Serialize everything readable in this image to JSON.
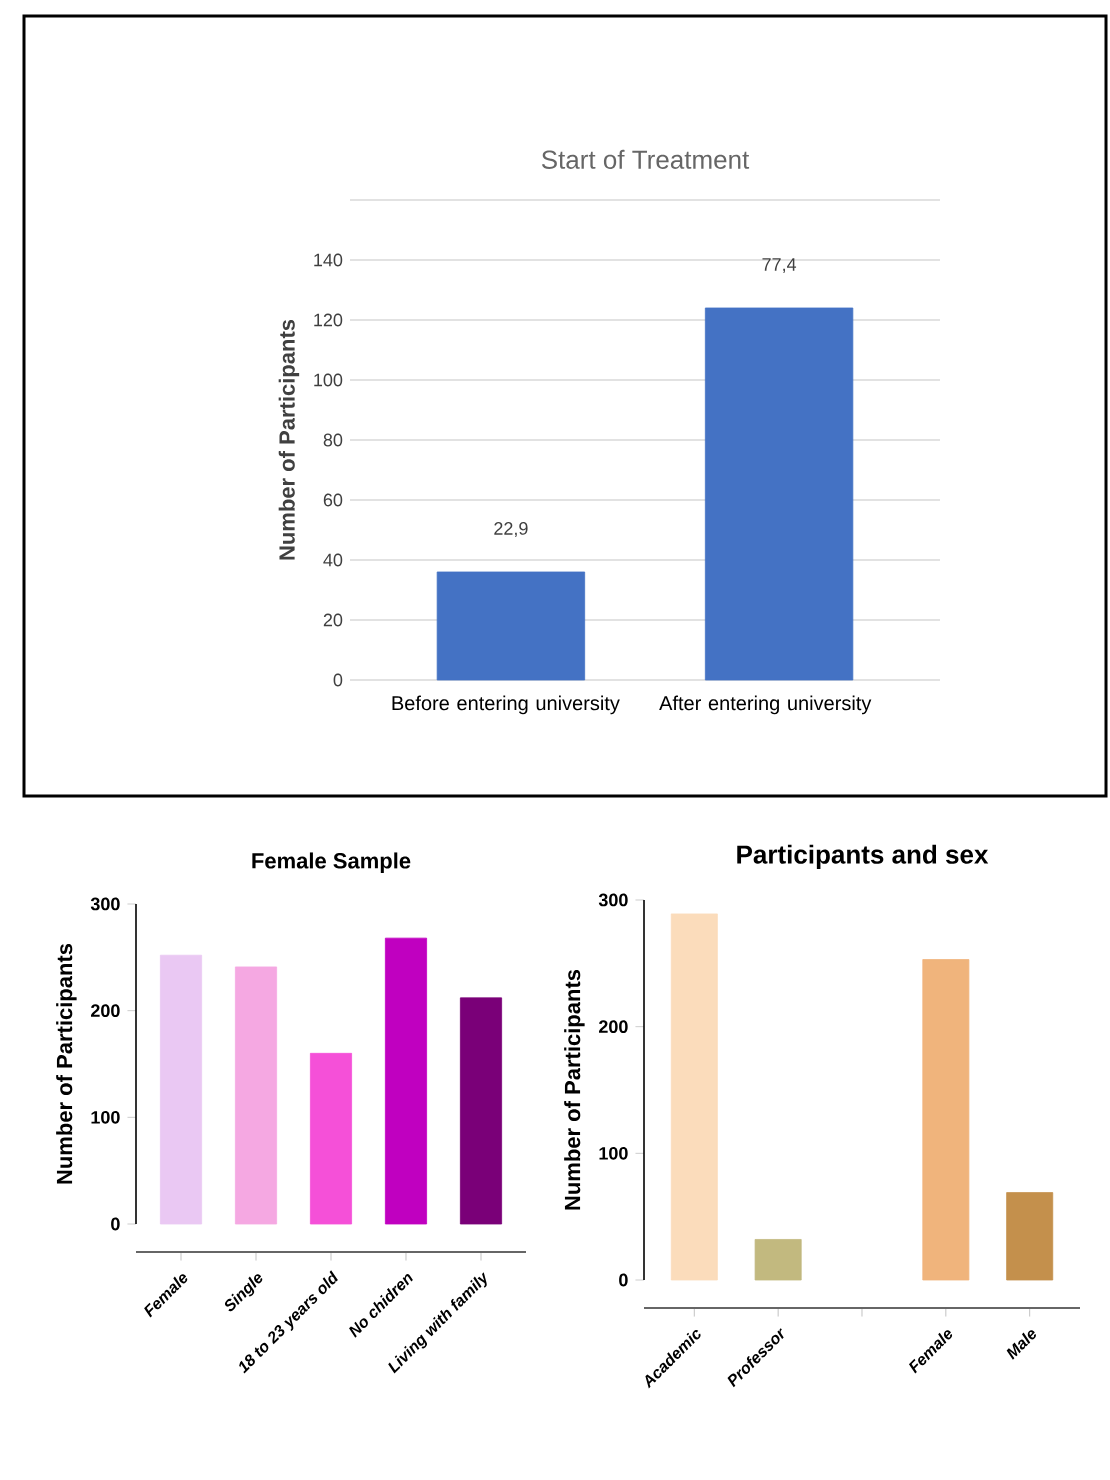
{
  "chart_data": [
    {
      "type": "bar",
      "title": "Start of Treatment",
      "ylabel": "Number of Participants",
      "categories": [
        "Before entering university",
        "After entering university"
      ],
      "values": [
        36,
        124
      ],
      "color": "#4472c4",
      "annotations": [
        {
          "text": "22,9",
          "x": "Before entering university",
          "y": 36
        },
        {
          "text": "77,4",
          "x": "After entering university",
          "y": 124
        }
      ],
      "ylim": [
        0,
        160
      ],
      "yticks": [
        0,
        20,
        40,
        60,
        80,
        100,
        120,
        140,
        {
          "value": 160,
          "label": null
        }
      ],
      "grid": "y"
    },
    {
      "type": "bar",
      "title": "Female Sample",
      "ylabel": "Number of Participants",
      "categories": [
        "Female",
        "Single",
        "18 to 23 years old",
        "No chidren",
        "Living with family"
      ],
      "values": [
        252,
        241,
        160,
        268,
        212
      ],
      "colors": [
        "#eac8f3",
        "#f5a8e2",
        "#f550d8",
        "#c000c0",
        "#7a0078"
      ],
      "ylim": [
        0,
        300
      ],
      "yticks": [
        0,
        100,
        200,
        300
      ]
    },
    {
      "type": "bar",
      "title": "Participants and sex",
      "ylabel": "Number of Participants",
      "categories": [
        "Academic",
        "Professor",
        null,
        "Female",
        "Male"
      ],
      "values": [
        289,
        32,
        null,
        253,
        69
      ],
      "colors": [
        "#fbdcbb",
        "#c2b97f",
        null,
        "#f0b47c",
        "#c4904c"
      ],
      "ylim": [
        0,
        300
      ],
      "yticks": [
        0,
        100,
        200,
        300
      ]
    }
  ]
}
